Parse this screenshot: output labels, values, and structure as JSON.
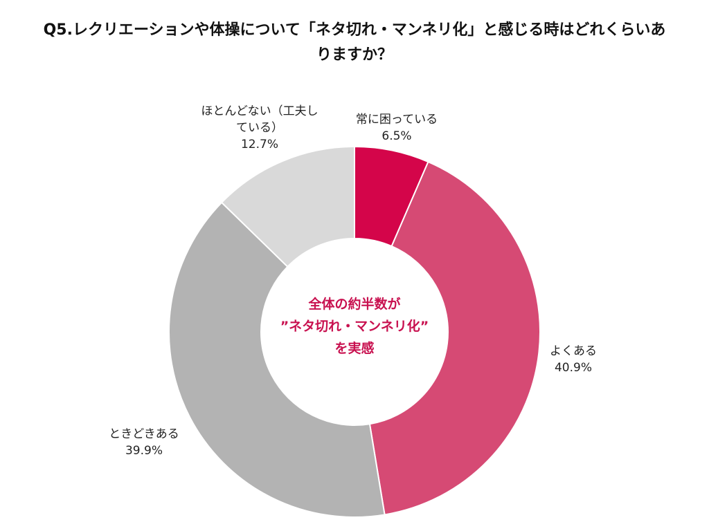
{
  "chart_data": {
    "type": "pie",
    "donut": true,
    "title": "Q5.レクリエーションや体操について「ネタ切れ・マンネリ化」と感じる時はどれくらいありますか？",
    "categories": [
      "常に困っている",
      "よくある",
      "ときどきある",
      "ほとんどない（工夫している）"
    ],
    "values": [
      6.5,
      40.9,
      39.9,
      12.7
    ],
    "value_labels": [
      "6.5%",
      "40.9%",
      "39.9%",
      "12.7%"
    ],
    "colors": [
      "#d4054a",
      "#d64a74",
      "#b3b3b3",
      "#d9d9d9"
    ],
    "center_text": [
      "全体の約半数が",
      "”ネタ切れ・マンネリ化”",
      "を実感"
    ],
    "center_color": "#c8104f"
  }
}
